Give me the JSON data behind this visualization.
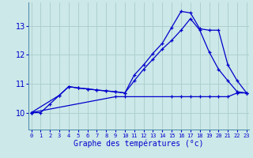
{
  "xlabel": "Graphe des températures (°c)",
  "bg_color": "#cce8e8",
  "grid_color": "#aacccc",
  "line_color": "#0000cc",
  "x_ticks": [
    0,
    1,
    2,
    3,
    4,
    5,
    6,
    7,
    8,
    9,
    10,
    11,
    12,
    13,
    14,
    15,
    16,
    17,
    18,
    19,
    20,
    21,
    22,
    23
  ],
  "y_ticks": [
    10,
    11,
    12,
    13
  ],
  "ylim": [
    9.4,
    13.8
  ],
  "xlim": [
    -0.3,
    23.3
  ],
  "line1": {
    "x": [
      0,
      1,
      2,
      3,
      4,
      5,
      6,
      7,
      8,
      9,
      10,
      11,
      12,
      13,
      14,
      15,
      16,
      17,
      18,
      19,
      20,
      21,
      22,
      23
    ],
    "y": [
      10.0,
      10.0,
      10.3,
      10.6,
      10.9,
      10.85,
      10.82,
      10.78,
      10.75,
      10.72,
      10.68,
      11.1,
      11.5,
      11.85,
      12.2,
      12.5,
      12.85,
      13.25,
      12.85,
      12.1,
      11.5,
      11.1,
      10.72,
      10.68
    ]
  },
  "line2": {
    "x": [
      0,
      3,
      4,
      5,
      6,
      7,
      8,
      9,
      10,
      11,
      12,
      13,
      14,
      15,
      16,
      17,
      18,
      19,
      20,
      21,
      22,
      23
    ],
    "y": [
      10.0,
      10.6,
      10.9,
      10.85,
      10.82,
      10.78,
      10.75,
      10.72,
      10.68,
      11.3,
      11.65,
      12.05,
      12.4,
      12.95,
      13.5,
      13.45,
      12.9,
      12.85,
      12.85,
      11.65,
      11.1,
      10.68
    ]
  },
  "line3": {
    "x": [
      0,
      9,
      10,
      15,
      16,
      17,
      18,
      19,
      20,
      21,
      22,
      23
    ],
    "y": [
      10.0,
      10.55,
      10.55,
      10.55,
      10.55,
      10.55,
      10.55,
      10.55,
      10.55,
      10.55,
      10.68,
      10.68
    ]
  }
}
